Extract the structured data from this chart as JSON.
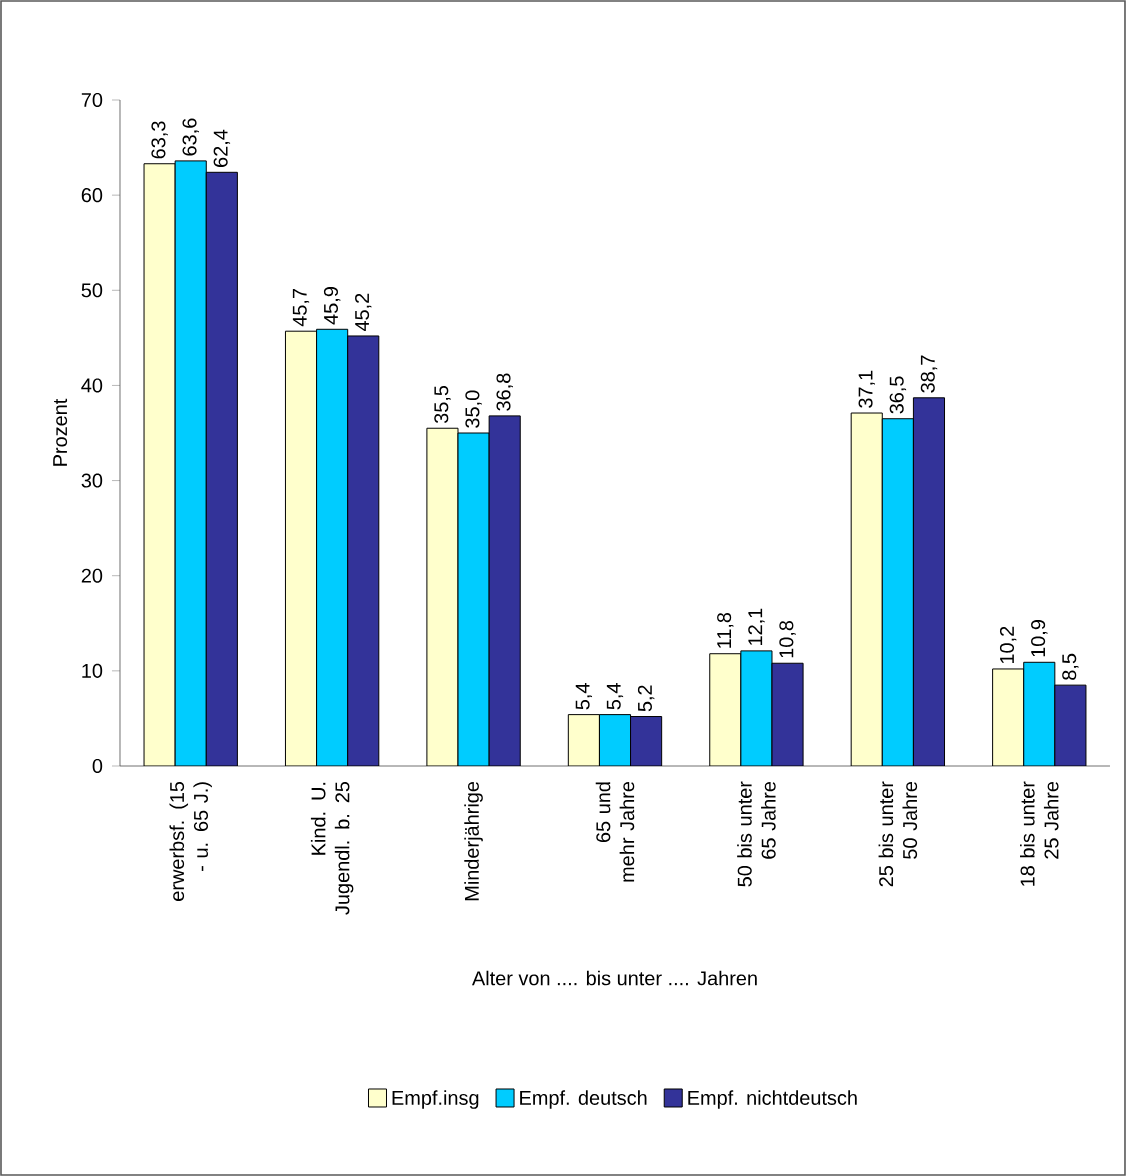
{
  "chart_data": {
    "type": "bar",
    "xlabel": "Alter von .... bis unter .... Jahren",
    "ylabel": "Prozent",
    "categories": [
      "erwerbsf. (15 - u. 65 J.)",
      "Kind. U. Jugendl. b. 25",
      "Minderjährige",
      "65 und mehr Jahre",
      "50 bis unter 65 Jahre",
      "25 bis unter 50 Jahre",
      "18 bis unter 25 Jahre"
    ],
    "series": [
      {
        "name": "Empf.insg",
        "color": "#ffffcc",
        "values": [
          63.3,
          45.7,
          35.5,
          5.4,
          11.8,
          37.1,
          10.2
        ],
        "value_labels": [
          "63,3",
          "45,7",
          "35,5",
          "5,4",
          "11,8",
          "37,1",
          "10,2"
        ]
      },
      {
        "name": "Empf. deutsch",
        "color": "#00ccff",
        "values": [
          63.6,
          45.9,
          35.0,
          5.4,
          12.1,
          36.5,
          10.9
        ],
        "value_labels": [
          "63,6",
          "45,9",
          "35,0",
          "5,4",
          "12,1",
          "36,5",
          "10,9"
        ]
      },
      {
        "name": "Empf. nichtdeutsch",
        "color": "#333399",
        "values": [
          62.4,
          45.2,
          36.8,
          5.2,
          10.8,
          38.7,
          8.5
        ],
        "value_labels": [
          "62,4",
          "45,2",
          "36,8",
          "5,2",
          "10,8",
          "38,7",
          "8,5"
        ]
      }
    ],
    "ylim": [
      0,
      70
    ],
    "yticks": [
      0,
      10,
      20,
      30,
      40,
      50,
      60,
      70
    ],
    "legend": "bottom"
  }
}
